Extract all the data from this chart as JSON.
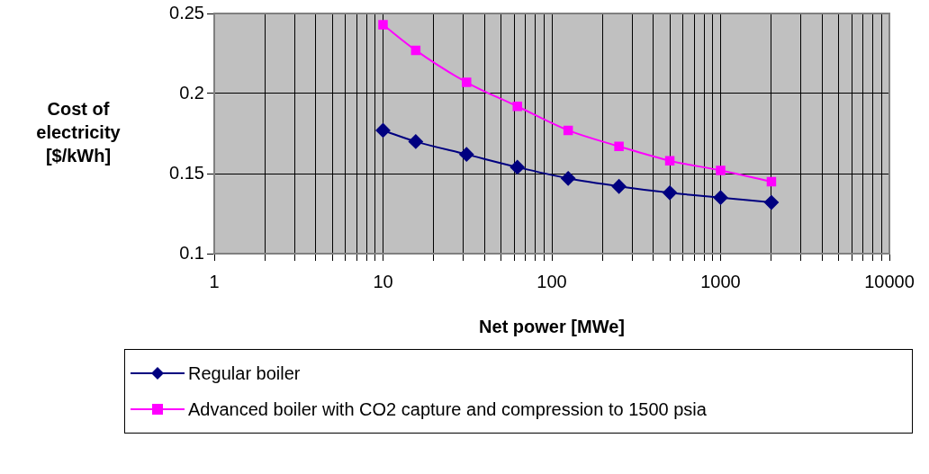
{
  "chart_data": {
    "type": "line",
    "xlabel": "Net power [MWe]",
    "ylabel": "Cost of electricity [$/kWh]",
    "x": [
      10,
      15.625,
      31.25,
      62.5,
      125,
      250,
      500,
      1000,
      2000
    ],
    "series": [
      {
        "name": "Regular boiler",
        "color": "#000080",
        "marker": "diamond",
        "values": [
          0.177,
          0.17,
          0.162,
          0.154,
          0.147,
          0.142,
          0.138,
          0.135,
          0.132
        ]
      },
      {
        "name": "Advanced boiler with CO2 capture and compression to 1500 psia",
        "color": "#ff00ff",
        "marker": "square",
        "values": [
          0.243,
          0.227,
          0.207,
          0.192,
          0.177,
          0.167,
          0.158,
          0.152,
          0.145
        ]
      }
    ],
    "log": "x",
    "xlim": [
      1,
      10000
    ],
    "xticks": [
      1,
      {
        "value": 2,
        "label": null
      },
      {
        "value": 3,
        "label": null
      },
      {
        "value": 4,
        "label": null
      },
      {
        "value": 5,
        "label": null
      },
      {
        "value": 6,
        "label": null
      },
      {
        "value": 7,
        "label": null
      },
      {
        "value": 8,
        "label": null
      },
      {
        "value": 9,
        "label": null
      },
      10,
      {
        "value": 20,
        "label": null
      },
      {
        "value": 30,
        "label": null
      },
      {
        "value": 40,
        "label": null
      },
      {
        "value": 50,
        "label": null
      },
      {
        "value": 60,
        "label": null
      },
      {
        "value": 70,
        "label": null
      },
      {
        "value": 80,
        "label": null
      },
      {
        "value": 90,
        "label": null
      },
      100,
      {
        "value": 200,
        "label": null
      },
      {
        "value": 300,
        "label": null
      },
      {
        "value": 400,
        "label": null
      },
      {
        "value": 500,
        "label": null
      },
      {
        "value": 600,
        "label": null
      },
      {
        "value": 700,
        "label": null
      },
      {
        "value": 800,
        "label": null
      },
      {
        "value": 900,
        "label": null
      },
      1000,
      {
        "value": 2000,
        "label": null
      },
      {
        "value": 3000,
        "label": null
      },
      {
        "value": 4000,
        "label": null
      },
      {
        "value": 5000,
        "label": null
      },
      {
        "value": 6000,
        "label": null
      },
      {
        "value": 7000,
        "label": null
      },
      {
        "value": 8000,
        "label": null
      },
      {
        "value": 9000,
        "label": null
      },
      10000
    ],
    "ylim": [
      0.1,
      0.25
    ],
    "yticks": [
      0.1,
      0.15,
      0.2,
      0.25
    ],
    "grid": true,
    "legend": "bottom",
    "line_style": "solid"
  }
}
